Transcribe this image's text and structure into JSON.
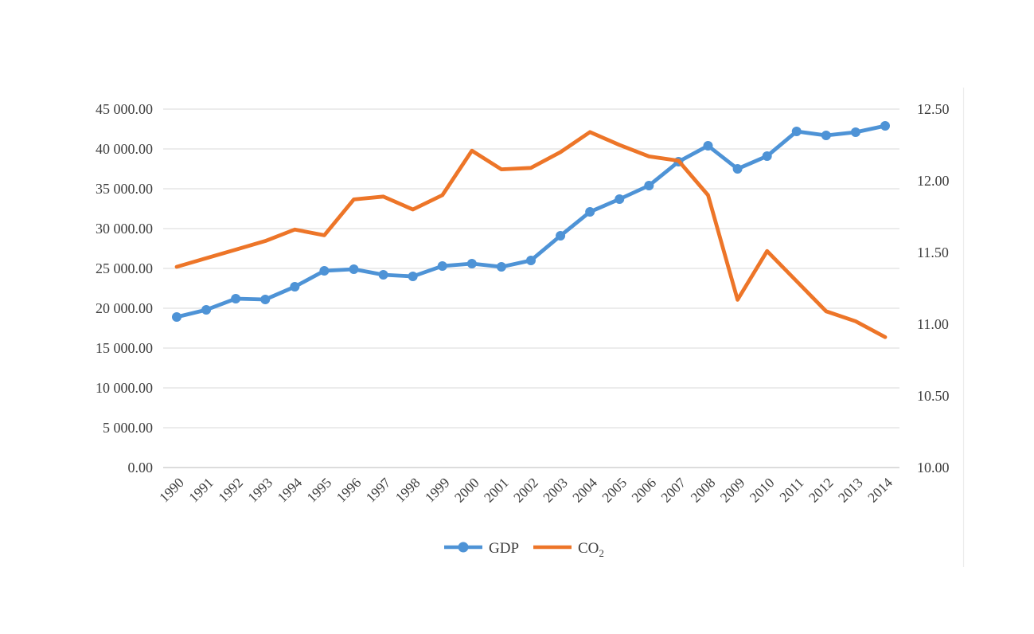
{
  "chart_data": {
    "type": "line",
    "categories": [
      "1990",
      "1991",
      "1992",
      "1993",
      "1994",
      "1995",
      "1996",
      "1997",
      "1998",
      "1999",
      "2000",
      "2001",
      "2002",
      "2003",
      "2004",
      "2005",
      "2006",
      "2007",
      "2008",
      "2009",
      "2010",
      "2011",
      "2012",
      "2013",
      "2014"
    ],
    "series": [
      {
        "name": "GDP",
        "axis": "left",
        "color": "#4e93d6",
        "markers": true,
        "values": [
          18900,
          19800,
          21200,
          21100,
          22700,
          24700,
          24900,
          24200,
          24000,
          25300,
          25600,
          25200,
          26000,
          29100,
          32100,
          33700,
          35400,
          38400,
          40400,
          37500,
          39100,
          42200,
          41700,
          42100,
          42900
        ]
      },
      {
        "name": "CO2",
        "axis": "right",
        "color": "#ed7528",
        "markers": false,
        "values": [
          11.4,
          11.46,
          11.52,
          11.58,
          11.66,
          11.62,
          11.87,
          11.89,
          11.8,
          11.9,
          12.21,
          12.08,
          12.09,
          12.2,
          12.34,
          12.25,
          12.17,
          12.14,
          11.9,
          11.17,
          11.51,
          11.3,
          11.09,
          11.02,
          10.91
        ]
      }
    ],
    "left_axis": {
      "min": 0,
      "max": 45000,
      "step": 5000,
      "tick_labels": [
        "0.00",
        "5 000.00",
        "10 000.00",
        "15 000.00",
        "20 000.00",
        "25 000.00",
        "30 000.00",
        "35 000.00",
        "40 000.00",
        "45 000.00"
      ]
    },
    "right_axis": {
      "min": 10,
      "max": 12.5,
      "step": 0.5,
      "tick_labels": [
        "10.00",
        "10.50",
        "11.00",
        "11.50",
        "12.00",
        "12.50"
      ]
    },
    "legend": {
      "position": "bottom",
      "gdp_label": "GDP",
      "co2_base": "CO",
      "co2_sub": "2"
    },
    "grid": true,
    "colors": {
      "gridline": "#e0e0e0",
      "axis_line": "#c6c6c6",
      "text": "#3d3d3d",
      "panel_border": "#ececec"
    }
  }
}
